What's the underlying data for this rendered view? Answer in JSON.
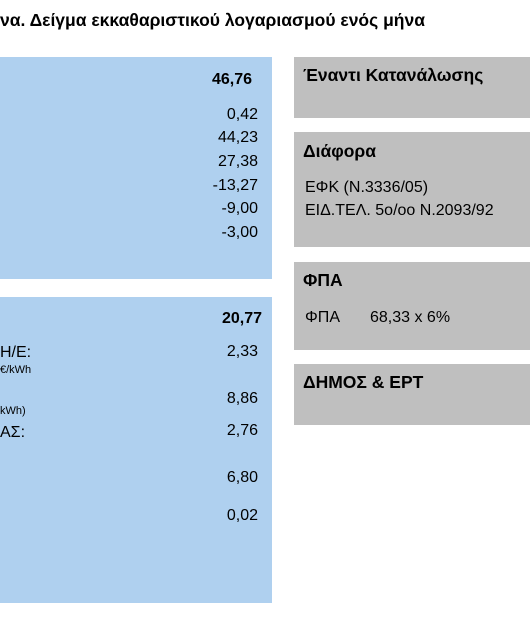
{
  "title": "να. Δείγμα εκκαθαριστικού λογαριασμού ενός μήνα",
  "panel1": {
    "total": "46,76",
    "values": [
      "0,42",
      "44,23",
      "27,38",
      "-13,27",
      "-9,00",
      "-3,00"
    ]
  },
  "panel2": {
    "total": "20,77",
    "rows": [
      {
        "label": "Η/Ε:",
        "sublabel": "€/kWh",
        "value": "2,33"
      },
      {
        "label": "",
        "sublabel": "kWh)",
        "value": "8,86"
      },
      {
        "label": "ΑΣ:",
        "sublabel": "",
        "value": "2,76"
      },
      {
        "label": "",
        "sublabel": "",
        "value": "6,80"
      },
      {
        "label": "",
        "sublabel": "",
        "value": "0,02"
      }
    ]
  },
  "right": {
    "consumption": {
      "heading": "Έναντι Κατανάλωσης"
    },
    "diafora": {
      "heading": "Διάφορα",
      "lines": [
        "ΕΦΚ (Ν.3336/05)",
        "ΕΙΔ.ΤΕΛ. 5ο/οο Ν.2093/92"
      ]
    },
    "fpa": {
      "heading": "ΦΠΑ",
      "label": "ΦΠΑ",
      "value": "68,33 x 6%"
    },
    "dimos": {
      "heading": "ΔΗΜΟΣ & ΕΡΤ"
    }
  },
  "colors": {
    "blue_panel": "#afd0ef",
    "grey_panel": "#bfbfbf"
  }
}
